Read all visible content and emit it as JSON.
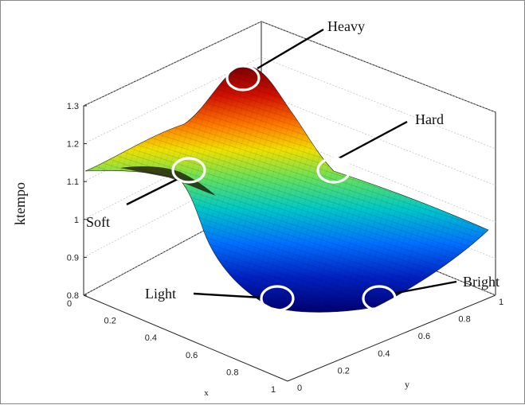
{
  "chart_data": {
    "type": "surface3d",
    "title": "",
    "xlabel": "x",
    "ylabel": "y",
    "zlabel": "ktempo",
    "xlim": [
      0,
      1
    ],
    "ylim": [
      0,
      1
    ],
    "zlim": [
      0.8,
      1.3
    ],
    "x_ticks": [
      "0",
      "0.2",
      "0.4",
      "0.6",
      "0.8",
      "1"
    ],
    "y_ticks": [
      "0",
      "0.2",
      "0.4",
      "0.6",
      "0.8",
      "1"
    ],
    "z_ticks": [
      "0.8",
      "0.9",
      "1",
      "1.1",
      "1.2",
      "1.3"
    ],
    "grid": true,
    "colormap": [
      "#00008f",
      "#0060ff",
      "#00d0d0",
      "#50e050",
      "#ffff00",
      "#ff8000",
      "#d00000",
      "#800000"
    ],
    "corner_values": {
      "x0_y0": 1.12,
      "x1_y0": 0.8,
      "x0_y1": 1.28,
      "x1_y1": 0.96
    },
    "annotations": [
      {
        "label": "Heavy",
        "x": 0.0,
        "y": 1.0,
        "z": 1.28
      },
      {
        "label": "Soft",
        "x": 0.0,
        "y": 0.5,
        "z": 1.1
      },
      {
        "label": "Hard",
        "x": 0.5,
        "y": 1.0,
        "z": 1.0
      },
      {
        "label": "Light",
        "x": 1.0,
        "y": 0.0,
        "z": 0.8
      },
      {
        "label": "Bright",
        "x": 1.0,
        "y": 0.5,
        "z": 0.82
      }
    ]
  }
}
